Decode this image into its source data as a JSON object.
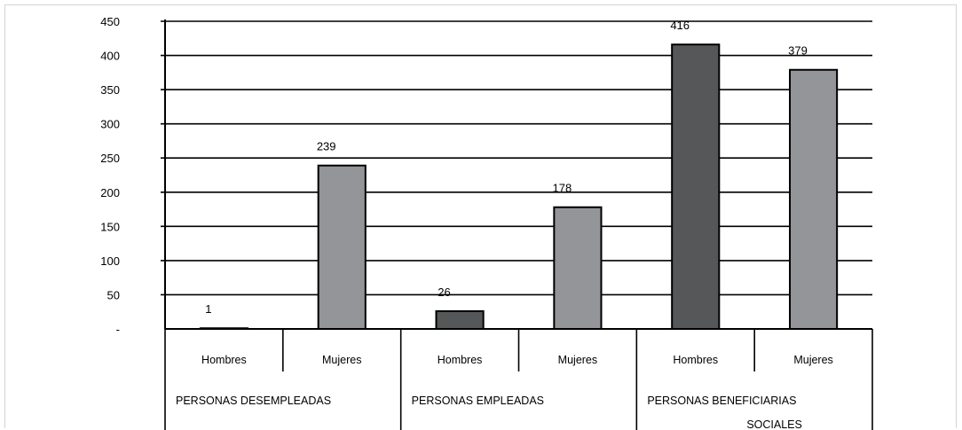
{
  "chart_data": {
    "type": "bar",
    "groups": [
      "PERSONAS DESEMPLEADAS",
      "PERSONAS EMPLEADAS",
      "PERSONAS BENEFICIARIAS SOCIALES"
    ],
    "categories": [
      "Hombres",
      "Mujeres",
      "Hombres",
      "Mujeres",
      "Hombres",
      "Mujeres"
    ],
    "values": [
      1,
      239,
      26,
      178,
      416,
      379
    ],
    "data_labels": [
      "1",
      "239",
      "26",
      "178",
      "416",
      "379"
    ],
    "ylim": [
      0,
      450
    ],
    "yticks": [
      0,
      50,
      100,
      150,
      200,
      250,
      300,
      350,
      400,
      450
    ],
    "ytick_labels": [
      "-",
      "50",
      "100",
      "150",
      "200",
      "250",
      "300",
      "350",
      "400",
      "450"
    ],
    "grid": true,
    "colors": {
      "Hombres": "#555759",
      "Mujeres": "#939598",
      "grid": "#000000"
    }
  }
}
